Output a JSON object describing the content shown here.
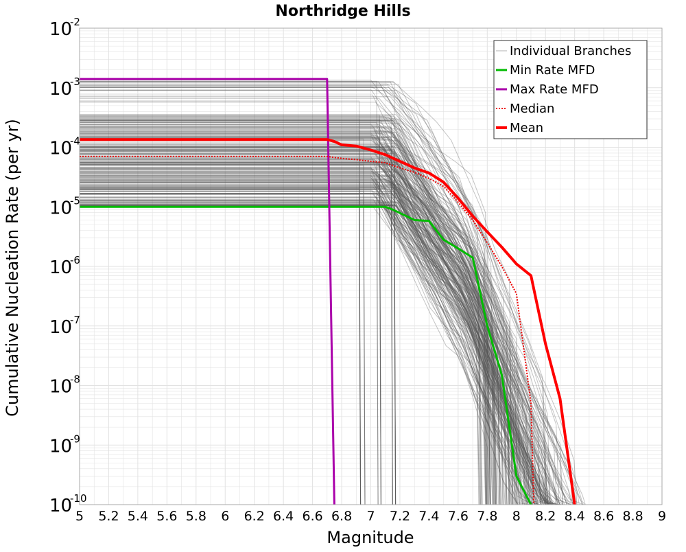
{
  "chart_data": {
    "type": "line",
    "title": "Northridge Hills",
    "xlabel": "Magnitude",
    "ylabel": "Cumulative Nucleation Rate (per yr)",
    "xlim": [
      5,
      9
    ],
    "ylim": [
      1e-10,
      0.01
    ],
    "yscale": "log",
    "grid": true,
    "legend_position": "top-right",
    "x_ticks": [
      "5",
      "5.2",
      "5.4",
      "5.6",
      "5.8",
      "6",
      "6.2",
      "6.4",
      "6.6",
      "6.8",
      "7",
      "7.2",
      "7.4",
      "7.6",
      "7.8",
      "8",
      "8.2",
      "8.4",
      "8.6",
      "8.8",
      "9"
    ],
    "y_ticks": [
      {
        "base": "10",
        "exp": "-2"
      },
      {
        "base": "10",
        "exp": "-3"
      },
      {
        "base": "10",
        "exp": "-4"
      },
      {
        "base": "10",
        "exp": "-5"
      },
      {
        "base": "10",
        "exp": "-6"
      },
      {
        "base": "10",
        "exp": "-7"
      },
      {
        "base": "10",
        "exp": "-8"
      },
      {
        "base": "10",
        "exp": "-9"
      },
      {
        "base": "10",
        "exp": "-10"
      }
    ],
    "legend": [
      {
        "label": "Individual Branches",
        "color": "#b0b0b0",
        "style": "thin"
      },
      {
        "label": "Min Rate MFD",
        "color": "#00bb00",
        "style": "solid"
      },
      {
        "label": "Max Rate MFD",
        "color": "#aa00aa",
        "style": "solid"
      },
      {
        "label": "Median",
        "color": "#ee0000",
        "style": "dotted"
      },
      {
        "label": "Mean",
        "color": "#ff0000",
        "style": "thick"
      }
    ],
    "colors": {
      "branches": "#555555",
      "min": "#00bb00",
      "max": "#aa00aa",
      "median": "#ee0000",
      "mean": "#ff0000",
      "grid": "#e2e2e2",
      "frame": "#aaaaaa"
    },
    "series": [
      {
        "name": "Min Rate MFD",
        "x": [
          5.0,
          7.1,
          7.15,
          7.3,
          7.4,
          7.5,
          7.6,
          7.7,
          7.8,
          7.9,
          8.0,
          8.1
        ],
        "y": [
          1e-05,
          1e-05,
          9e-06,
          6e-06,
          5.8e-06,
          2.8e-06,
          2e-06,
          1.4e-06,
          1e-07,
          1.5e-08,
          3e-10,
          1e-10
        ]
      },
      {
        "name": "Max Rate MFD",
        "x": [
          5.0,
          6.7,
          6.75
        ],
        "y": [
          0.0014,
          0.0014,
          1e-10
        ]
      },
      {
        "name": "Median",
        "x": [
          5.0,
          6.7,
          6.8,
          6.9,
          7.0,
          7.1,
          7.2,
          7.3,
          7.4,
          7.5,
          7.6,
          7.7,
          7.8,
          7.9,
          8.0,
          8.1,
          8.12
        ],
        "y": [
          7e-05,
          7e-05,
          6.5e-05,
          6.2e-05,
          5.8e-05,
          5.5e-05,
          4.5e-05,
          3.8e-05,
          3e-05,
          2.2e-05,
          1.2e-05,
          6e-06,
          2.5e-06,
          1e-06,
          3.5e-07,
          5e-09,
          1e-10
        ]
      },
      {
        "name": "Mean",
        "x": [
          5.0,
          6.7,
          6.75,
          6.8,
          6.9,
          7.0,
          7.1,
          7.2,
          7.3,
          7.4,
          7.5,
          7.6,
          7.7,
          7.8,
          7.9,
          8.0,
          8.1,
          8.2,
          8.3,
          8.4
        ],
        "y": [
          0.000135,
          0.000135,
          0.000125,
          0.00011,
          0.000105,
          9e-05,
          7.5e-05,
          5.8e-05,
          4.5e-05,
          3.7e-05,
          2.6e-05,
          1.4e-05,
          7e-06,
          3.8e-06,
          2.1e-06,
          1.1e-06,
          7e-07,
          5e-08,
          6e-09,
          1e-10
        ]
      }
    ]
  }
}
